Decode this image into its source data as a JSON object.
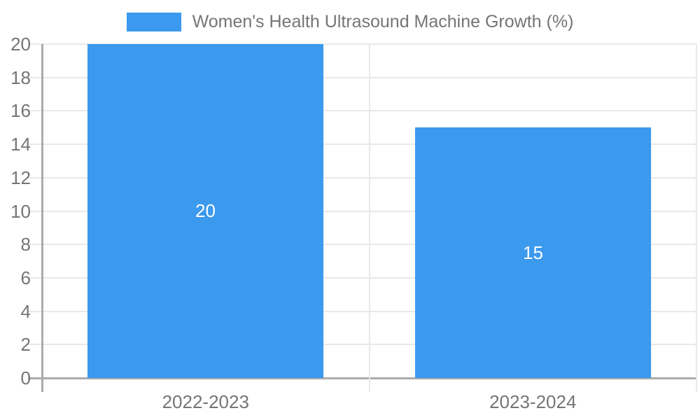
{
  "page": {
    "background": "#ffffff"
  },
  "legend": {
    "label": "Women's Health Ultrasound Machine Growth (%)",
    "swatch_color": "#3b99ee"
  },
  "chart_data": {
    "type": "bar",
    "title": "",
    "series_name": "Women's Health Ultrasound Machine Growth (%)",
    "categories": [
      "2022-2023",
      "2023-2024"
    ],
    "values": [
      20,
      15
    ],
    "data_labels": [
      "20",
      "15"
    ],
    "ylim": [
      0,
      20
    ],
    "ytick_step": 2,
    "yticks": [
      0,
      2,
      4,
      6,
      8,
      10,
      12,
      14,
      16,
      18,
      20
    ],
    "grid": true,
    "legend_position": "top-center",
    "colors": {
      "bar": "#3b99ee",
      "grid": "#e8e8e8",
      "axis": "#ababab",
      "text": "#757575",
      "data_label": "#ffffff"
    }
  }
}
